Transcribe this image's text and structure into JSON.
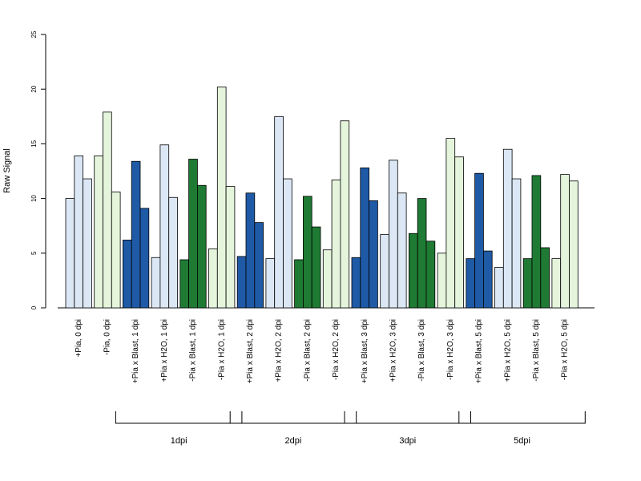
{
  "chart_data": {
    "type": "bar",
    "ylabel": "Raw Signal",
    "ylim": [
      0,
      25
    ],
    "yticks": [
      0,
      5,
      10,
      15,
      20,
      25
    ],
    "grid": false,
    "categories": [
      "+Pia, 0 dpi",
      "-Pia, 0 dpi",
      "+Pia x Blast, 1 dpi",
      "+Pia x H2O, 1 dpi",
      "-Pia x Blast, 1 dpi",
      "-Pia x H2O, 1 dpi",
      "+Pia x Blast, 2 dpi",
      "+Pia x H2O, 2 dpi",
      "-Pia x Blast, 2 dpi",
      "-Pia x H2O, 2 dpi",
      "+Pia x Blast, 3 dpi",
      "+Pia x H2O, 3 dpi",
      "-Pia x Blast, 3 dpi",
      "-Pia x H2O, 3 dpi",
      "+Pia x Blast, 5 dpi",
      "+Pia x H2O, 5 dpi",
      "-Pia x Blast, 5 dpi",
      "-Pia x H2O, 5 dpi"
    ],
    "values": [
      [
        10.0,
        13.9,
        11.8
      ],
      [
        13.9,
        17.9,
        10.6
      ],
      [
        6.2,
        13.4,
        9.1
      ],
      [
        4.6,
        14.9,
        10.1
      ],
      [
        4.4,
        13.6,
        11.2
      ],
      [
        5.4,
        20.2,
        11.1
      ],
      [
        4.7,
        10.5,
        7.8
      ],
      [
        4.5,
        17.5,
        11.8
      ],
      [
        4.4,
        10.2,
        7.4
      ],
      [
        5.3,
        11.7,
        17.1
      ],
      [
        4.6,
        12.8,
        9.8
      ],
      [
        6.7,
        13.5,
        10.5
      ],
      [
        6.8,
        10.0,
        6.1
      ],
      [
        5.0,
        15.5,
        13.8
      ],
      [
        4.5,
        12.3,
        5.2
      ],
      [
        3.7,
        14.5,
        11.8
      ],
      [
        4.5,
        12.1,
        5.5
      ],
      [
        4.5,
        12.2,
        11.6
      ]
    ],
    "bar_colors": [
      "#dbe7f5",
      "#e5f5dc",
      "#1f5aa6",
      "#dbe7f5",
      "#1f7a33",
      "#e5f5dc",
      "#1f5aa6",
      "#dbe7f5",
      "#1f7a33",
      "#e5f5dc",
      "#1f5aa6",
      "#dbe7f5",
      "#1f7a33",
      "#e5f5dc",
      "#1f5aa6",
      "#dbe7f5",
      "#1f7a33",
      "#e5f5dc"
    ],
    "groups": [
      {
        "label": "1dpi",
        "categories": [
          2,
          5
        ]
      },
      {
        "label": "2dpi",
        "categories": [
          6,
          9
        ]
      },
      {
        "label": "3dpi",
        "categories": [
          10,
          13
        ]
      },
      {
        "label": "5dpi",
        "categories": [
          14,
          17
        ]
      }
    ]
  }
}
